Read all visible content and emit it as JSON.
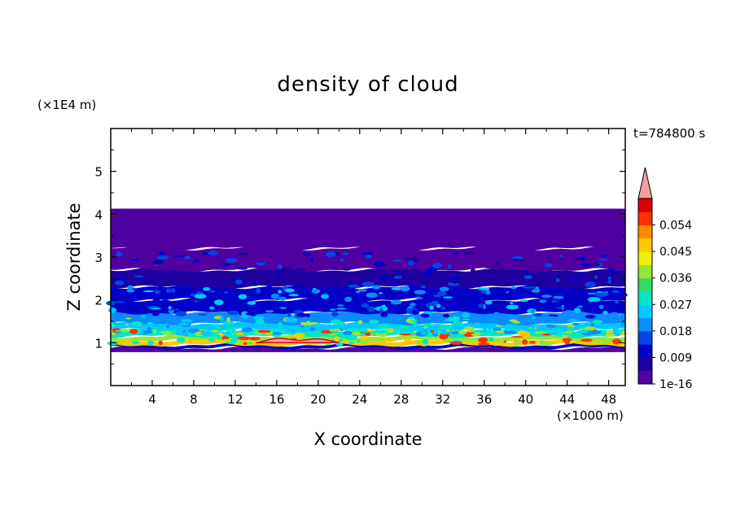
{
  "chart_data": {
    "type": "heatmap",
    "title": "density of cloud",
    "xlabel": "X coordinate",
    "ylabel": "Z coordinate",
    "x_unit": "(×1000 m)",
    "y_unit": "(×1E4 m)",
    "time_label": "t=784800 s",
    "xlim": [
      0,
      49.6
    ],
    "ylim": [
      0,
      6
    ],
    "x_ticks": [
      4,
      8,
      12,
      16,
      20,
      24,
      28,
      32,
      36,
      40,
      44,
      48
    ],
    "y_ticks": [
      1,
      2,
      3,
      4,
      5
    ],
    "colorbar": {
      "levels": [
        1e-16,
        0.0045,
        0.009,
        0.0135,
        0.018,
        0.0225,
        0.027,
        0.0315,
        0.036,
        0.0405,
        0.045,
        0.0495,
        0.054,
        0.0585
      ],
      "tick_labels": [
        "1e-16",
        "0.009",
        "0.018",
        "0.027",
        "0.036",
        "0.045",
        "0.054"
      ],
      "colors": [
        "#5000a0",
        "#1e00a0",
        "#0000c8",
        "#0046e6",
        "#0a8cff",
        "#00c8ff",
        "#00e6c8",
        "#32dc64",
        "#96e632",
        "#f0f000",
        "#ffc800",
        "#ff8c00",
        "#ff3200",
        "#dc0000"
      ],
      "extend_color": "#f0a0a0"
    },
    "layers": [
      {
        "z_min": 0.78,
        "z_max": 0.88,
        "value": 0.0
      },
      {
        "z_min": 0.88,
        "z_max": 0.95,
        "value": 0.012
      },
      {
        "z_min": 0.95,
        "z_max": 1.05,
        "value": 0.048
      },
      {
        "z_min": 1.05,
        "z_max": 1.15,
        "value": 0.04
      },
      {
        "z_min": 1.15,
        "z_max": 1.3,
        "value": 0.03
      },
      {
        "z_min": 1.3,
        "z_max": 1.45,
        "value": 0.024
      },
      {
        "z_min": 1.45,
        "z_max": 1.7,
        "value": 0.018
      },
      {
        "z_min": 1.7,
        "z_max": 2.0,
        "value": 0.013
      },
      {
        "z_min": 2.0,
        "z_max": 2.3,
        "value": 0.009
      },
      {
        "z_min": 2.3,
        "z_max": 2.7,
        "value": 0.005
      },
      {
        "z_min": 2.7,
        "z_max": 3.2,
        "value": 0.002
      },
      {
        "z_min": 3.2,
        "z_max": 4.13,
        "value": 0.0
      }
    ],
    "peak_region": {
      "x_range": [
        14,
        22
      ],
      "z_range": [
        1.0,
        1.15
      ],
      "value": 0.06
    }
  }
}
